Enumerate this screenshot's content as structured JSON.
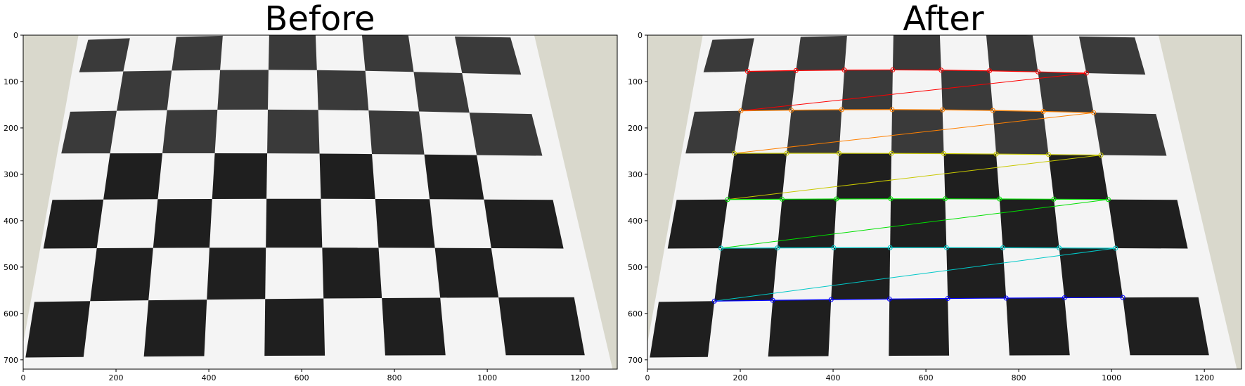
{
  "panels": [
    {
      "id": "before",
      "title": "Before",
      "xticks": [
        "0",
        "200",
        "400",
        "600",
        "800",
        "1000",
        "1200"
      ],
      "yticks": [
        "0",
        "100",
        "200",
        "300",
        "400",
        "500",
        "600",
        "700"
      ],
      "xlim": [
        0,
        1280
      ],
      "ylim": [
        720,
        0
      ],
      "show_corners": false
    },
    {
      "id": "after",
      "title": "After",
      "xticks": [
        "0",
        "200",
        "400",
        "600",
        "800",
        "1000",
        "1200"
      ],
      "yticks": [
        "0",
        "100",
        "200",
        "300",
        "400",
        "500",
        "600",
        "700"
      ],
      "xlim": [
        0,
        1280
      ],
      "ylim": [
        720,
        0
      ],
      "show_corners": true
    }
  ],
  "colors": {
    "background": "#ffffff",
    "wall": "#d9d8cc",
    "paper": "#f4f4f4",
    "dark_square": "#1f1f1f",
    "row_colors": [
      "#ff0000",
      "#ff8000",
      "#c8c800",
      "#00e000",
      "#00c8c8",
      "#0000ff"
    ]
  }
}
